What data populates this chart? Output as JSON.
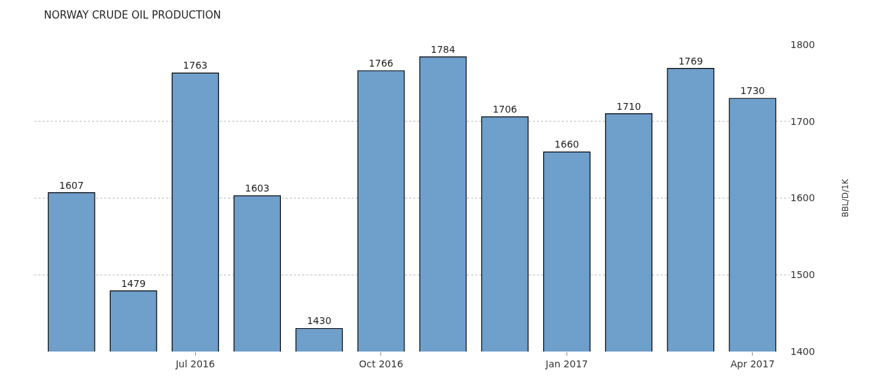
{
  "chart_data": {
    "type": "bar",
    "title": "NORWAY CRUDE OIL PRODUCTION",
    "ylabel": "BBL/D/1K",
    "categories": [
      null,
      null,
      "Jul 2016",
      null,
      null,
      "Oct 2016",
      null,
      null,
      "Jan 2017",
      null,
      null,
      "Apr 2017"
    ],
    "values": [
      1607,
      1479,
      1763,
      1603,
      1430,
      1766,
      1784,
      1706,
      1660,
      1710,
      1769,
      1730
    ],
    "color": "#6f9fcb",
    "ylim": [
      1400,
      1800
    ],
    "yticks": [
      1400,
      1500,
      1600,
      1700,
      1800
    ],
    "grid": "y",
    "data_labels": true,
    "legend": false
  }
}
